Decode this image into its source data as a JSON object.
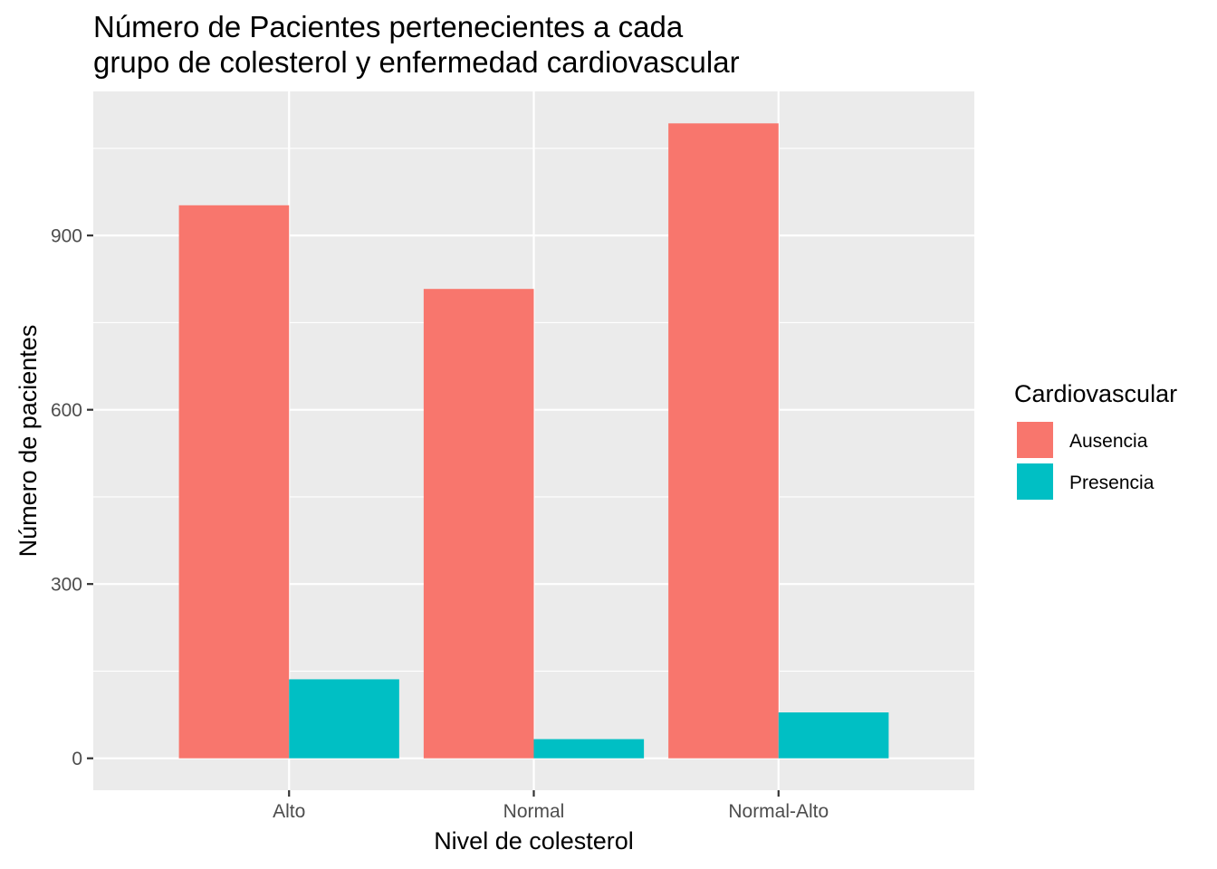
{
  "chart_data": {
    "type": "bar",
    "title_lines": [
      "Número de Pacientes pertenecientes a cada",
      "grupo de colesterol y enfermedad cardiovascular"
    ],
    "xlabel": "Nivel de colesterol",
    "ylabel": "Número de pacientes",
    "categories": [
      "Alto",
      "Normal",
      "Normal-Alto"
    ],
    "series": [
      {
        "name": "Ausencia",
        "color": "#F8766D",
        "values": [
          952,
          808,
          1093
        ]
      },
      {
        "name": "Presencia",
        "color": "#00BFC4",
        "values": [
          136,
          33,
          79
        ]
      }
    ],
    "ylim": [
      -55,
      1148
    ],
    "y_ticks": [
      0,
      300,
      600,
      900
    ],
    "y_tick_labels": [
      "0",
      "300",
      "600",
      "900"
    ],
    "grid": true,
    "panel_background": "#EBEBEB",
    "legend": {
      "title": "Cardiovascular",
      "position": "right"
    }
  }
}
